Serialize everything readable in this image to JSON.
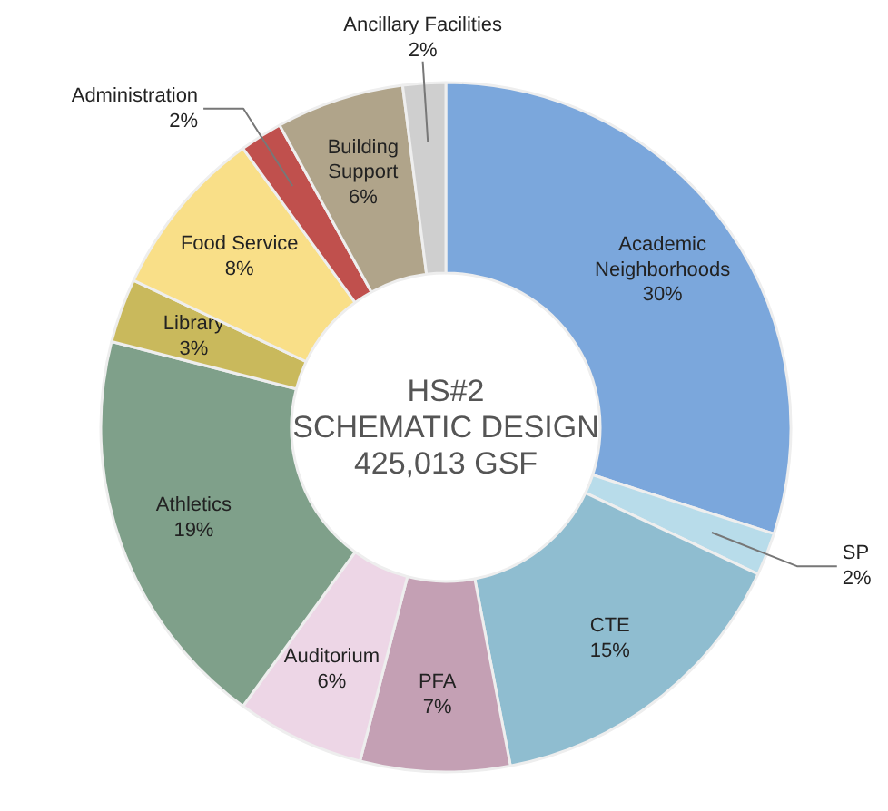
{
  "chart_data": {
    "type": "donut",
    "title": "HS#2",
    "subtitle": "SCHEMATIC DESIGN",
    "annotations": [
      "425,013 GSF"
    ],
    "categories": [
      "Academic Neighborhoods",
      "SP",
      "CTE",
      "PFA",
      "Auditorium",
      "Athletics",
      "Library",
      "Food Service",
      "Administration",
      "Building Support",
      "Ancillary Facilities"
    ],
    "values": [
      30,
      2,
      15,
      7,
      6,
      19,
      3,
      8,
      2,
      6,
      2
    ],
    "value_labels": [
      "30%",
      "2%",
      "15%",
      "7%",
      "6%",
      "19%",
      "3%",
      "8%",
      "2%",
      "6%",
      "2%"
    ],
    "colors": [
      "#7ba7dc",
      "#b8dcea",
      "#8fbdd0",
      "#c4a0b4",
      "#edd6e6",
      "#7fa08a",
      "#c9b95c",
      "#f9df88",
      "#c0504d",
      "#b0a48a",
      "#cfcfcf"
    ]
  }
}
